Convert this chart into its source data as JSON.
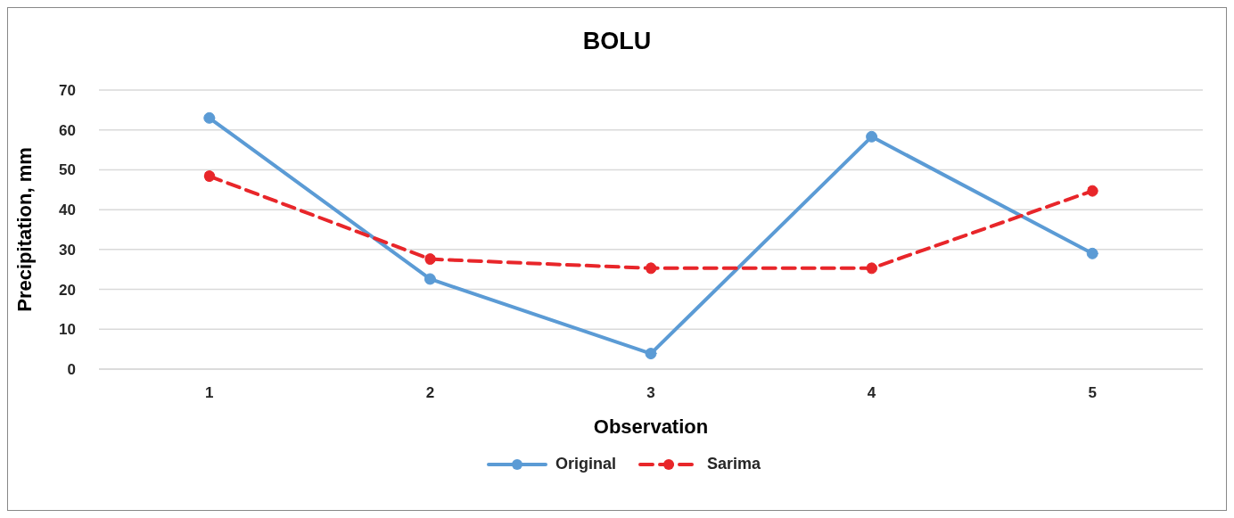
{
  "chart_data": {
    "type": "line",
    "title": "BOLU",
    "xlabel": "Observation",
    "ylabel": "Precipitation, mm",
    "categories": [
      "1",
      "2",
      "3",
      "4",
      "5"
    ],
    "series": [
      {
        "name": "Original",
        "color": "#5b9bd5",
        "line_style": "solid",
        "values": [
          63,
          22.6,
          3.9,
          58.3,
          29
        ]
      },
      {
        "name": "Sarima",
        "color": "#e8262a",
        "line_style": "dashed",
        "values": [
          48.4,
          27.6,
          25.3,
          25.3,
          44.7
        ]
      }
    ],
    "ylim": [
      0,
      70
    ],
    "yticks": [
      0,
      10,
      20,
      30,
      40,
      50,
      60,
      70
    ],
    "grid": "y",
    "legend": "bottom",
    "marker": "circle"
  }
}
